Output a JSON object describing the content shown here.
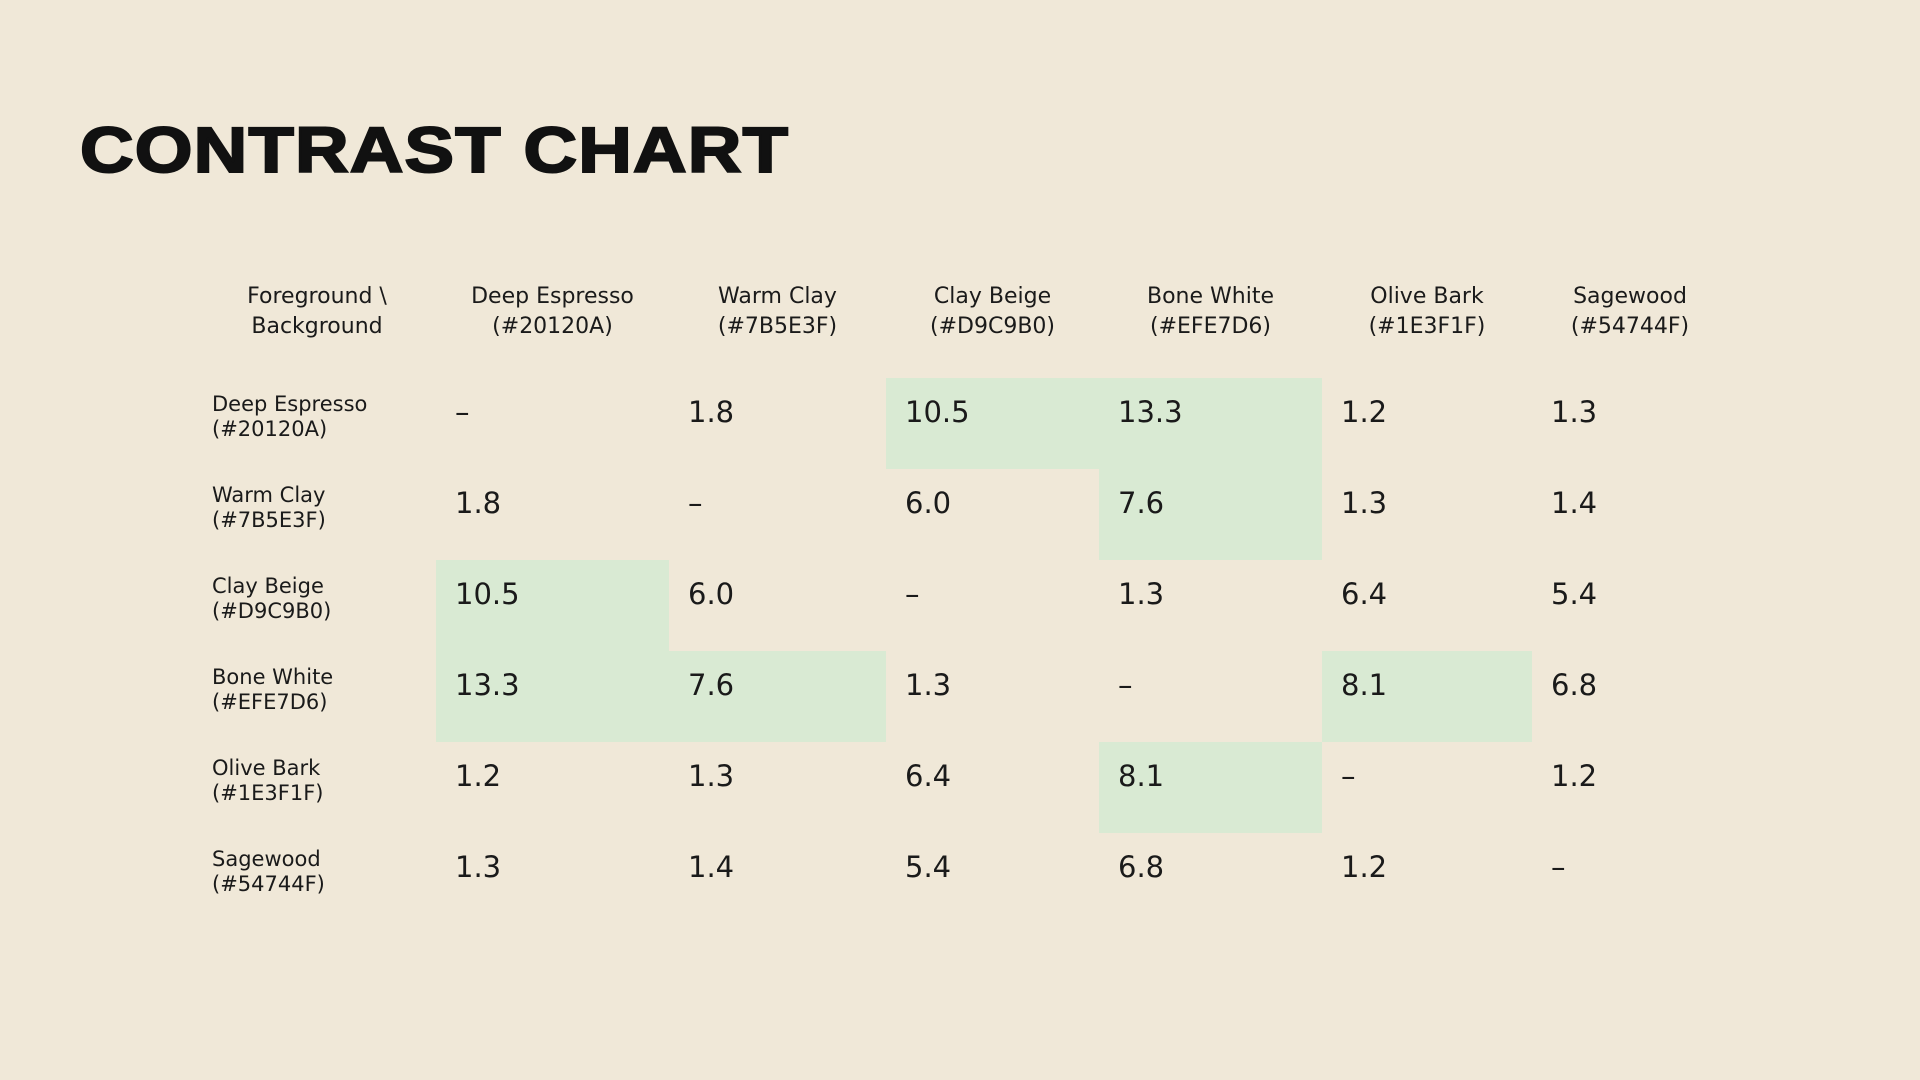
{
  "title": "CONTRAST CHART",
  "chart_data": {
    "type": "table",
    "corner_header": [
      "Foreground \\",
      "Background"
    ],
    "columns": [
      {
        "name": "Deep Espresso",
        "hex": "(#20120A)"
      },
      {
        "name": "Warm Clay",
        "hex": "(#7B5E3F)"
      },
      {
        "name": "Clay Beige",
        "hex": "(#D9C9B0)"
      },
      {
        "name": "Bone White",
        "hex": "(#EFE7D6)"
      },
      {
        "name": "Olive Bark",
        "hex": "(#1E3F1F)"
      },
      {
        "name": "Sagewood",
        "hex": "(#54744F)"
      }
    ],
    "rows": [
      {
        "name": "Deep Espresso",
        "hex": "(#20120A)",
        "values": [
          "–",
          "1.8",
          "10.5",
          "13.3",
          "1.2",
          "1.3"
        ],
        "highlight": [
          false,
          false,
          true,
          true,
          false,
          false
        ]
      },
      {
        "name": "Warm Clay",
        "hex": "(#7B5E3F)",
        "values": [
          "1.8",
          "–",
          "6.0",
          "7.6",
          "1.3",
          "1.4"
        ],
        "highlight": [
          false,
          false,
          false,
          true,
          false,
          false
        ]
      },
      {
        "name": "Clay Beige",
        "hex": "(#D9C9B0)",
        "values": [
          "10.5",
          "6.0",
          "–",
          "1.3",
          "6.4",
          "5.4"
        ],
        "highlight": [
          true,
          false,
          false,
          false,
          false,
          false
        ]
      },
      {
        "name": "Bone White",
        "hex": "(#EFE7D6)",
        "values": [
          "13.3",
          "7.6",
          "1.3",
          "–",
          "8.1",
          "6.8"
        ],
        "highlight": [
          true,
          true,
          false,
          false,
          true,
          false
        ]
      },
      {
        "name": "Olive Bark",
        "hex": "(#1E3F1F)",
        "values": [
          "1.2",
          "1.3",
          "6.4",
          "8.1",
          "–",
          "1.2"
        ],
        "highlight": [
          false,
          false,
          false,
          true,
          false,
          false
        ]
      },
      {
        "name": "Sagewood",
        "hex": "(#54744F)",
        "values": [
          "1.3",
          "1.4",
          "5.4",
          "6.8",
          "1.2",
          "–"
        ],
        "highlight": [
          false,
          false,
          false,
          false,
          false,
          false
        ]
      }
    ],
    "highlight_color": "#D9EAD3",
    "background_color": "#F0E8D8"
  }
}
